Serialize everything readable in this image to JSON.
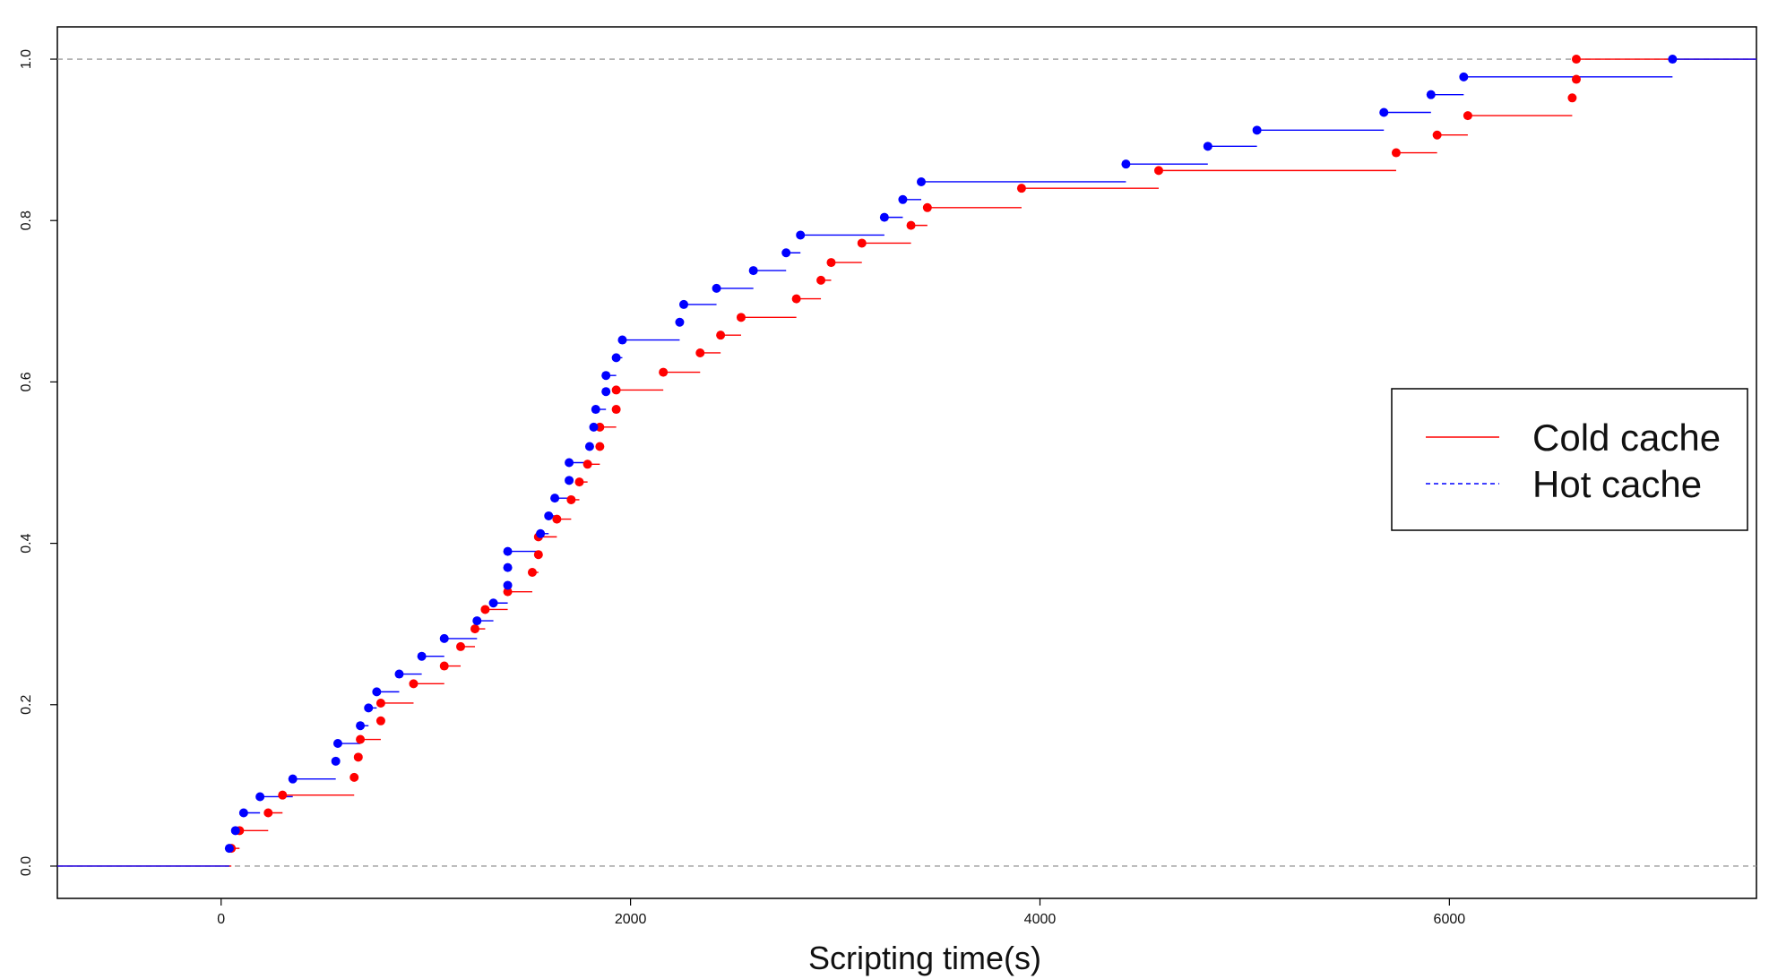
{
  "chart_data": {
    "type": "line",
    "style": "empirical-cdf step plot with points",
    "title": "",
    "xlabel": "Scripting time(s)",
    "ylabel": "",
    "xlim": [
      -800,
      7500
    ],
    "ylim": [
      -0.04,
      1.04
    ],
    "x_ticks": [
      0,
      2000,
      4000,
      6000
    ],
    "y_ticks": [
      0.0,
      0.2,
      0.4,
      0.6,
      0.8,
      1.0
    ],
    "x_tick_labels": [
      "0",
      "2000",
      "4000",
      "6000"
    ],
    "y_tick_labels": [
      "0.0",
      "0.2",
      "0.4",
      "0.6",
      "0.8",
      "1.0"
    ],
    "reference_lines_y": [
      0.0,
      1.0
    ],
    "grid": false,
    "legend_position": "right",
    "series": [
      {
        "name": "Cold cache",
        "color": "#ff0000",
        "line_style": "solid",
        "points": [
          [
            50,
            0.022
          ],
          [
            90,
            0.044
          ],
          [
            230,
            0.066
          ],
          [
            300,
            0.088
          ],
          [
            650,
            0.11
          ],
          [
            670,
            0.135
          ],
          [
            680,
            0.157
          ],
          [
            780,
            0.18
          ],
          [
            780,
            0.202
          ],
          [
            940,
            0.226
          ],
          [
            1090,
            0.248
          ],
          [
            1170,
            0.272
          ],
          [
            1240,
            0.294
          ],
          [
            1290,
            0.318
          ],
          [
            1400,
            0.34
          ],
          [
            1520,
            0.364
          ],
          [
            1550,
            0.386
          ],
          [
            1550,
            0.408
          ],
          [
            1640,
            0.43
          ],
          [
            1710,
            0.454
          ],
          [
            1750,
            0.476
          ],
          [
            1790,
            0.498
          ],
          [
            1850,
            0.52
          ],
          [
            1850,
            0.544
          ],
          [
            1930,
            0.566
          ],
          [
            1930,
            0.59
          ],
          [
            2160,
            0.612
          ],
          [
            2340,
            0.636
          ],
          [
            2440,
            0.658
          ],
          [
            2540,
            0.68
          ],
          [
            2810,
            0.703
          ],
          [
            2930,
            0.726
          ],
          [
            2980,
            0.748
          ],
          [
            3130,
            0.772
          ],
          [
            3370,
            0.794
          ],
          [
            3450,
            0.816
          ],
          [
            3910,
            0.84
          ],
          [
            4580,
            0.862
          ],
          [
            5740,
            0.884
          ],
          [
            5940,
            0.906
          ],
          [
            6090,
            0.93
          ],
          [
            6600,
            0.952
          ],
          [
            6620,
            0.975
          ],
          [
            6620,
            1.0
          ]
        ]
      },
      {
        "name": "Hot cache",
        "color": "#0000ff",
        "line_style": "dashed",
        "points": [
          [
            40,
            0.022
          ],
          [
            70,
            0.044
          ],
          [
            110,
            0.066
          ],
          [
            190,
            0.086
          ],
          [
            350,
            0.108
          ],
          [
            560,
            0.13
          ],
          [
            570,
            0.152
          ],
          [
            680,
            0.174
          ],
          [
            720,
            0.196
          ],
          [
            760,
            0.216
          ],
          [
            870,
            0.238
          ],
          [
            980,
            0.26
          ],
          [
            1090,
            0.282
          ],
          [
            1250,
            0.304
          ],
          [
            1330,
            0.326
          ],
          [
            1400,
            0.348
          ],
          [
            1400,
            0.37
          ],
          [
            1400,
            0.39
          ],
          [
            1560,
            0.412
          ],
          [
            1600,
            0.434
          ],
          [
            1630,
            0.456
          ],
          [
            1700,
            0.478
          ],
          [
            1700,
            0.5
          ],
          [
            1800,
            0.52
          ],
          [
            1820,
            0.544
          ],
          [
            1830,
            0.566
          ],
          [
            1880,
            0.588
          ],
          [
            1880,
            0.608
          ],
          [
            1930,
            0.63
          ],
          [
            1960,
            0.652
          ],
          [
            2240,
            0.674
          ],
          [
            2260,
            0.696
          ],
          [
            2420,
            0.716
          ],
          [
            2600,
            0.738
          ],
          [
            2760,
            0.76
          ],
          [
            2830,
            0.782
          ],
          [
            3240,
            0.804
          ],
          [
            3330,
            0.826
          ],
          [
            3420,
            0.848
          ],
          [
            4420,
            0.87
          ],
          [
            4820,
            0.892
          ],
          [
            5060,
            0.912
          ],
          [
            5680,
            0.934
          ],
          [
            5910,
            0.956
          ],
          [
            6070,
            0.978
          ],
          [
            7090,
            1.0
          ]
        ]
      }
    ]
  }
}
